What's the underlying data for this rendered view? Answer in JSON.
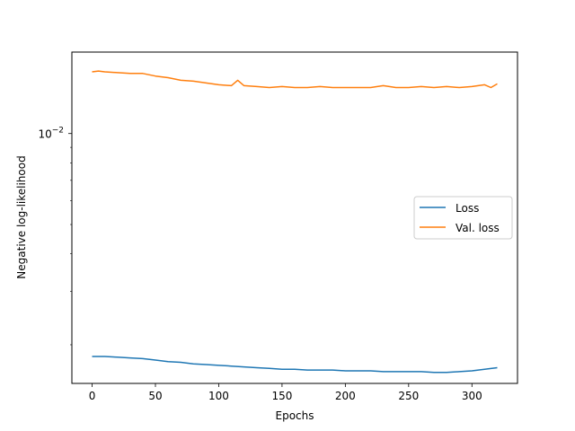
{
  "chart_data": {
    "type": "line",
    "xlabel": "Epochs",
    "ylabel": "Negative log-likelihood",
    "xlim": [
      -16,
      336
    ],
    "xticks": [
      0,
      50,
      100,
      150,
      200,
      250,
      300
    ],
    "yscale": "log",
    "ylim": [
      0.00149,
      0.0186
    ],
    "yticks": [
      {
        "value": 0.01,
        "base": "10",
        "exp": "−2"
      }
    ],
    "grid": false,
    "legend_position": "center-right",
    "series": [
      {
        "name": "Loss",
        "color": "#1f77b4",
        "x": [
          0,
          10,
          20,
          30,
          40,
          50,
          60,
          70,
          80,
          90,
          100,
          110,
          120,
          130,
          140,
          150,
          160,
          170,
          180,
          190,
          200,
          210,
          220,
          230,
          240,
          250,
          260,
          270,
          280,
          290,
          300,
          310,
          320
        ],
        "values": [
          0.00183,
          0.00183,
          0.00182,
          0.00181,
          0.0018,
          0.00178,
          0.00176,
          0.00175,
          0.00173,
          0.00172,
          0.00171,
          0.0017,
          0.00169,
          0.00168,
          0.00167,
          0.00166,
          0.00166,
          0.00165,
          0.00165,
          0.00165,
          0.00164,
          0.00164,
          0.00164,
          0.00163,
          0.00163,
          0.00163,
          0.00163,
          0.00162,
          0.00162,
          0.00163,
          0.00164,
          0.00166,
          0.00168
        ]
      },
      {
        "name": "Val. loss",
        "color": "#ff7f0e",
        "x": [
          0,
          5,
          10,
          20,
          30,
          40,
          50,
          60,
          70,
          80,
          90,
          95,
          100,
          110,
          115,
          120,
          130,
          140,
          150,
          160,
          170,
          180,
          190,
          200,
          210,
          220,
          230,
          240,
          250,
          260,
          270,
          280,
          290,
          300,
          310,
          315,
          320
        ],
        "values": [
          0.016,
          0.0161,
          0.016,
          0.0159,
          0.0158,
          0.0158,
          0.0155,
          0.0153,
          0.015,
          0.0149,
          0.0147,
          0.0146,
          0.0145,
          0.0144,
          0.015,
          0.0144,
          0.0143,
          0.0142,
          0.0143,
          0.0142,
          0.0142,
          0.0143,
          0.0142,
          0.0142,
          0.0142,
          0.0142,
          0.0144,
          0.0142,
          0.0142,
          0.0143,
          0.0142,
          0.0143,
          0.0142,
          0.0143,
          0.0145,
          0.0142,
          0.0146
        ]
      }
    ]
  }
}
